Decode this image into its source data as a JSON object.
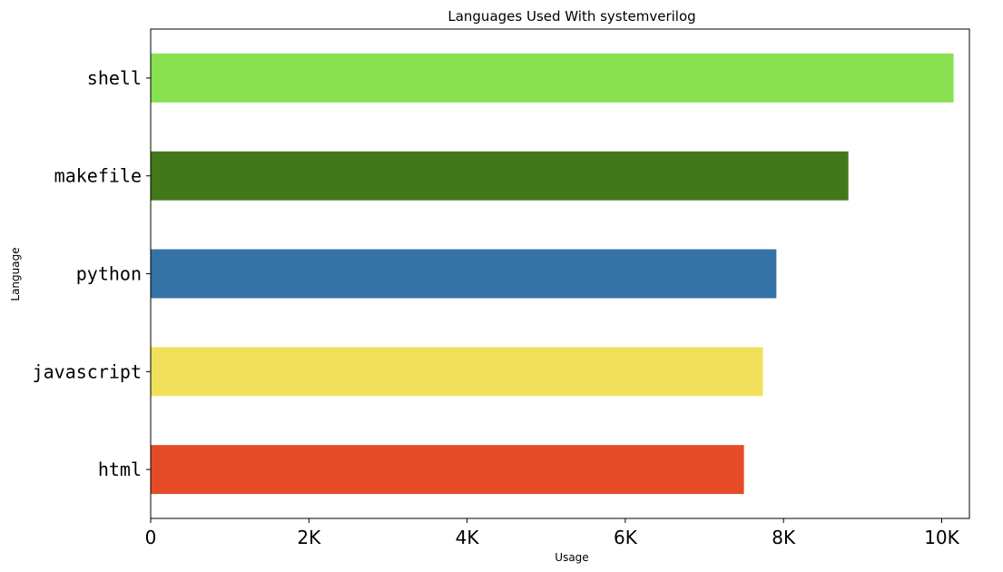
{
  "chart_data": {
    "type": "bar",
    "orientation": "horizontal",
    "title": "Languages Used With systemverilog",
    "xlabel": "Usage",
    "ylabel": "Language",
    "xlim": [
      0,
      10350
    ],
    "x_ticks": [
      {
        "value": 0,
        "label": "0"
      },
      {
        "value": 2000,
        "label": "2K"
      },
      {
        "value": 4000,
        "label": "4K"
      },
      {
        "value": 6000,
        "label": "6K"
      },
      {
        "value": 8000,
        "label": "8K"
      },
      {
        "value": 10000,
        "label": "10K"
      }
    ],
    "categories": [
      "shell",
      "makefile",
      "python",
      "javascript",
      "html"
    ],
    "values": [
      10150,
      8820,
      7910,
      7740,
      7500
    ],
    "colors": [
      "#89e051",
      "#427819",
      "#3572a5",
      "#f1e05a",
      "#e34c26"
    ],
    "grid": false,
    "legend": "none"
  }
}
